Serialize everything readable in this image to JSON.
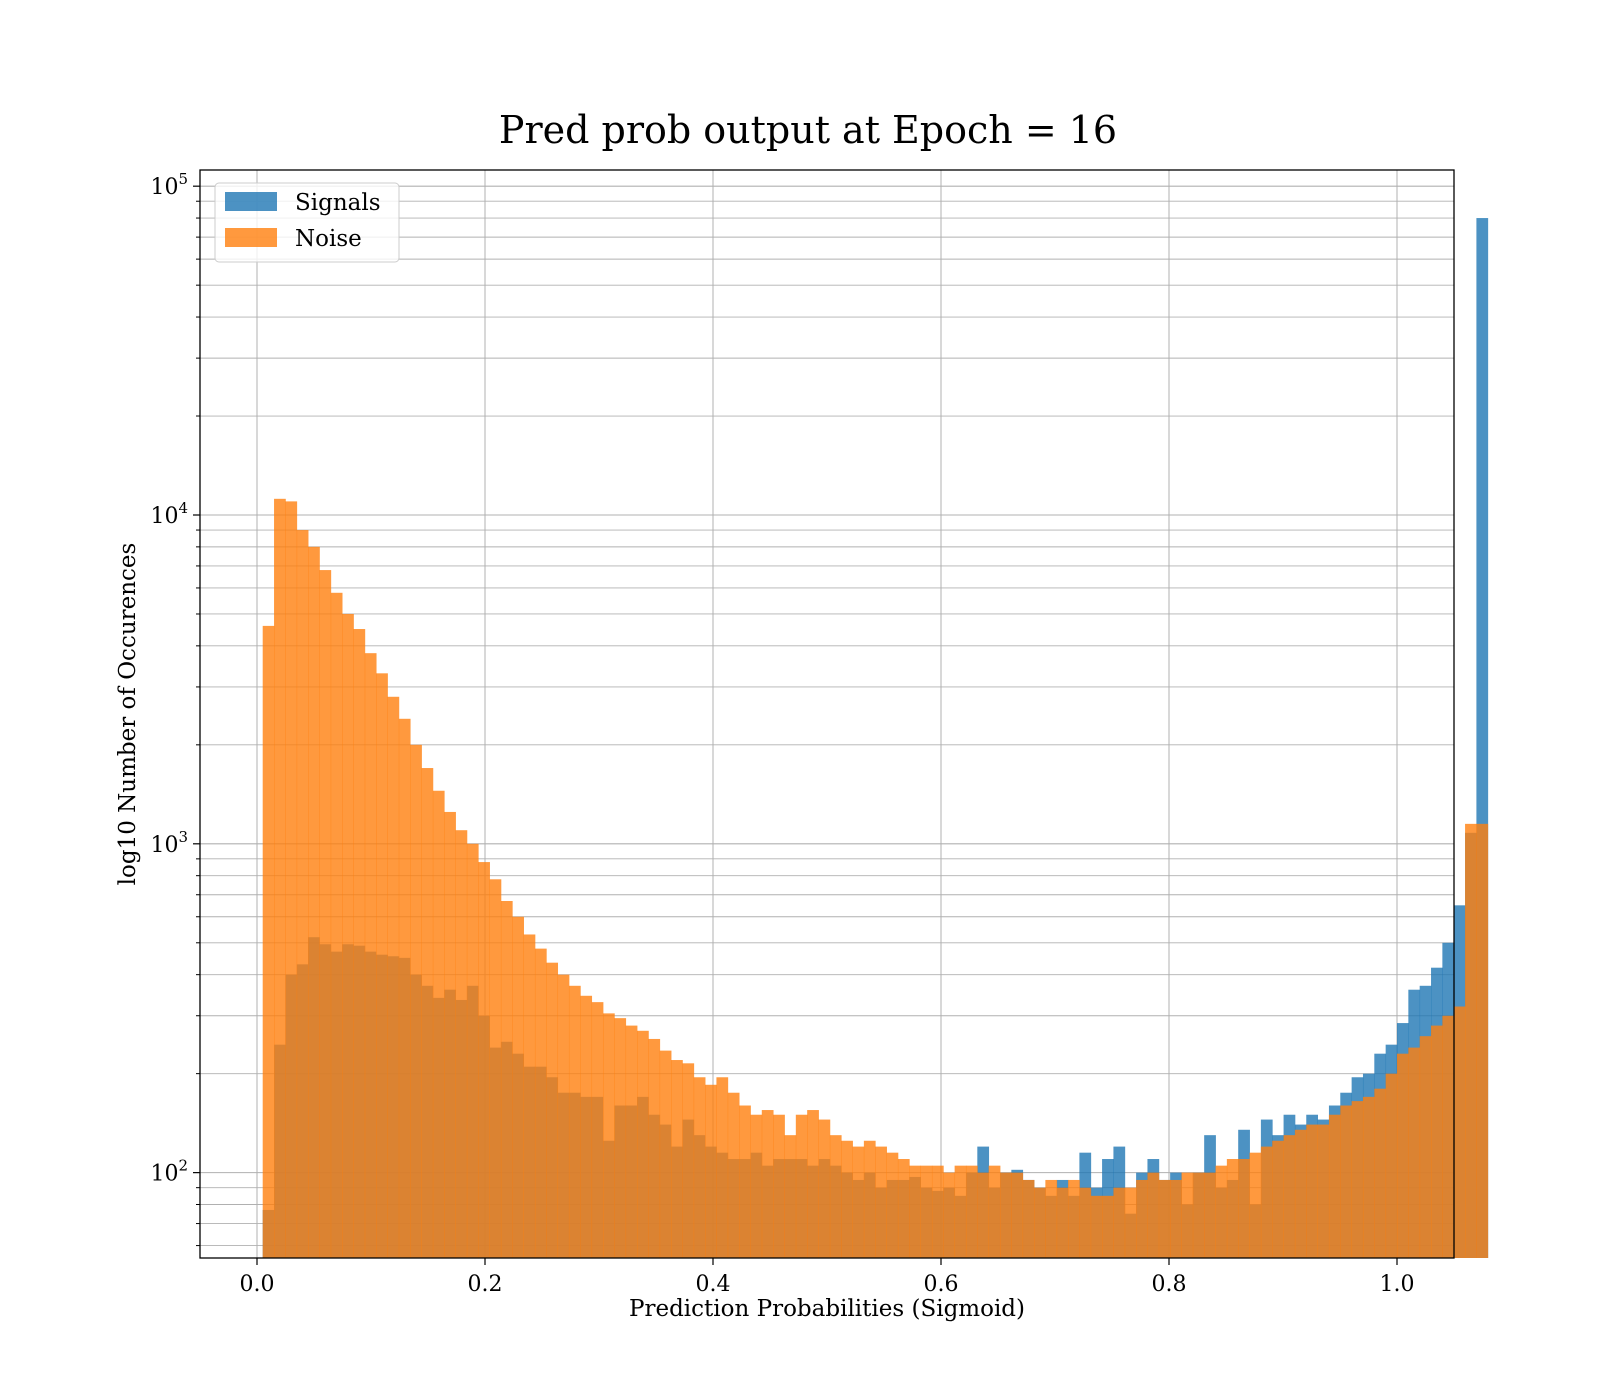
{
  "chart_data": {
    "type": "bar",
    "title": "Pred prob output at Epoch = 16",
    "xlabel": "Prediction Probabilities (Sigmoid)",
    "ylabel": "log10 Number of Occurences",
    "xlim": [
      -0.05,
      1.05
    ],
    "ylim": [
      55,
      112000
    ],
    "yscale": "log",
    "grid": true,
    "legend_position": "upper-left",
    "x_ticks": [
      {
        "value": 0.0,
        "label": "0.0"
      },
      {
        "value": 0.2,
        "label": "0.2"
      },
      {
        "value": 0.4,
        "label": "0.4"
      },
      {
        "value": 0.6,
        "label": "0.6"
      },
      {
        "value": 0.8,
        "label": "0.8"
      },
      {
        "value": 1.0,
        "label": "1.0"
      }
    ],
    "y_ticks": [
      {
        "value": 100,
        "base": "10",
        "exp": "2"
      },
      {
        "value": 1000,
        "base": "10",
        "exp": "3"
      },
      {
        "value": 10000,
        "base": "10",
        "exp": "4"
      },
      {
        "value": 100000,
        "base": "10",
        "exp": "5"
      }
    ],
    "bin_start": 0.005,
    "bin_width": 0.00995,
    "series": [
      {
        "name": "Signals",
        "color": "#1f77b4",
        "opacity": 0.8,
        "values": [
          77,
          245,
          400,
          430,
          520,
          495,
          470,
          495,
          490,
          470,
          460,
          455,
          450,
          400,
          370,
          340,
          360,
          335,
          370,
          300,
          240,
          250,
          230,
          210,
          210,
          195,
          175,
          175,
          170,
          170,
          125,
          160,
          160,
          170,
          150,
          140,
          120,
          145,
          130,
          120,
          115,
          110,
          110,
          115,
          105,
          110,
          110,
          110,
          105,
          110,
          105,
          100,
          95,
          100,
          90,
          95,
          95,
          97,
          90,
          88,
          90,
          85,
          100,
          120,
          90,
          100,
          102,
          95,
          90,
          85,
          95,
          85,
          115,
          90,
          110,
          120,
          75,
          100,
          110,
          95,
          100,
          80,
          100,
          130,
          90,
          95,
          135,
          80,
          145,
          130,
          150,
          140,
          150,
          145,
          160,
          175,
          195,
          200,
          230,
          245,
          285,
          360,
          370,
          420,
          500,
          650,
          1080,
          80000
        ]
      },
      {
        "name": "Noise",
        "color": "#ff7f0e",
        "opacity": 0.8,
        "values": [
          4600,
          11200,
          11000,
          9000,
          8000,
          6800,
          5800,
          5000,
          4500,
          3800,
          3300,
          2800,
          2400,
          2000,
          1700,
          1450,
          1250,
          1100,
          1000,
          880,
          780,
          670,
          600,
          530,
          480,
          435,
          400,
          370,
          345,
          330,
          305,
          295,
          280,
          270,
          255,
          235,
          220,
          215,
          195,
          185,
          195,
          175,
          160,
          150,
          155,
          150,
          130,
          150,
          155,
          145,
          130,
          125,
          120,
          125,
          120,
          115,
          110,
          105,
          105,
          105,
          100,
          105,
          105,
          100,
          105,
          100,
          100,
          95,
          90,
          95,
          90,
          95,
          90,
          85,
          85,
          90,
          90,
          95,
          100,
          95,
          95,
          100,
          100,
          100,
          105,
          110,
          110,
          115,
          120,
          125,
          130,
          135,
          140,
          140,
          150,
          160,
          165,
          170,
          180,
          200,
          230,
          240,
          260,
          280,
          300,
          320,
          1150,
          1150
        ]
      }
    ]
  }
}
